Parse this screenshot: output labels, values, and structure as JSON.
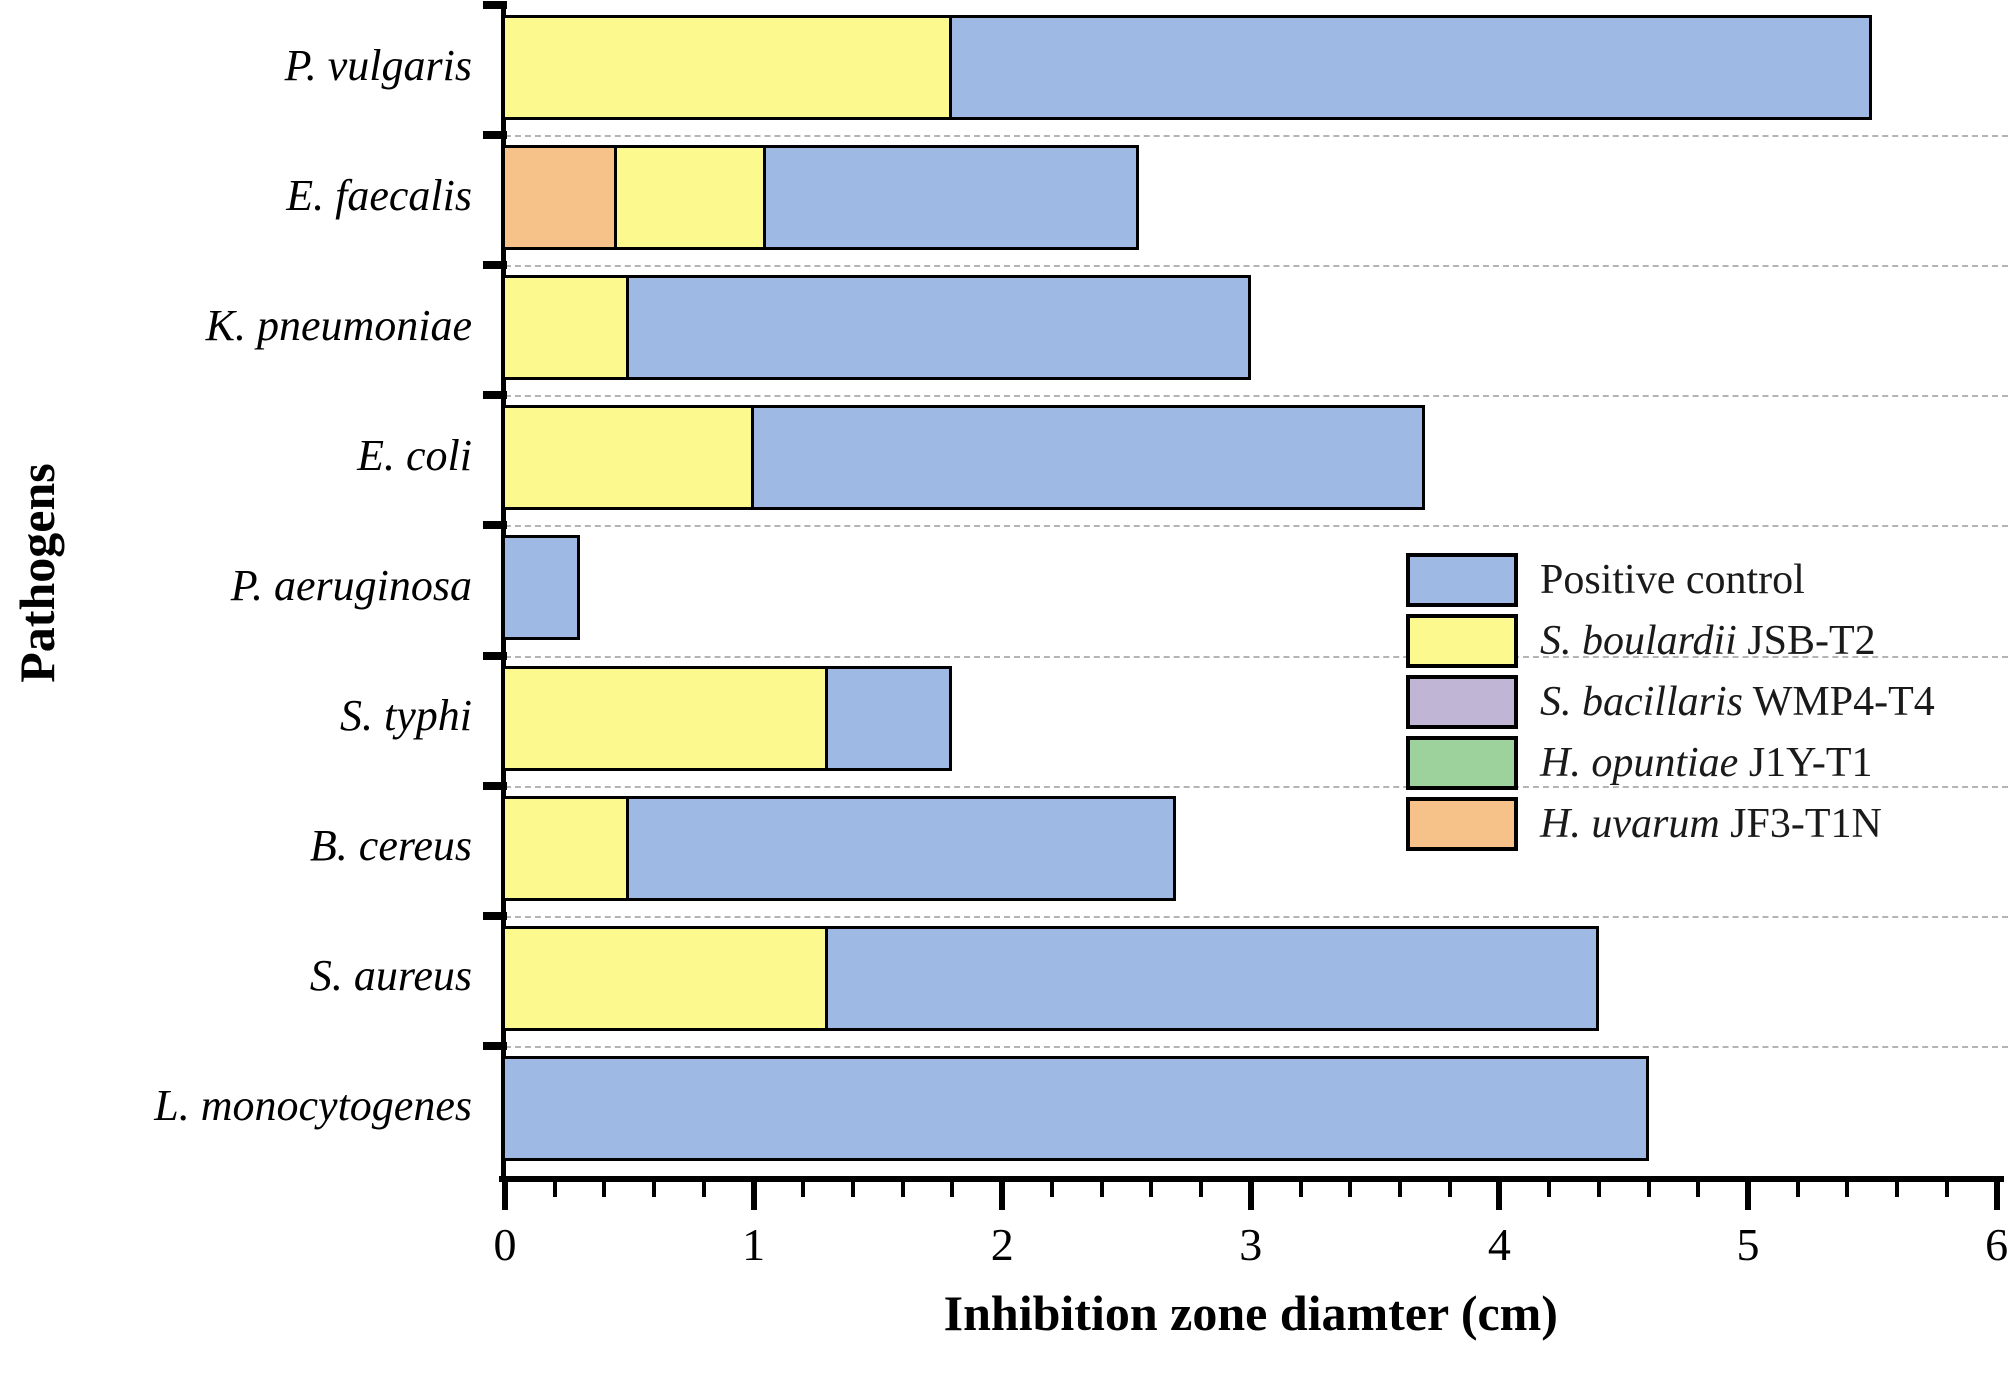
{
  "chart_data": {
    "type": "bar",
    "orientation": "horizontal",
    "title": "",
    "xlabel": "Inhibition zone diamter (cm)",
    "ylabel": "Pathogens",
    "xlim": [
      0,
      6
    ],
    "x_major_ticks": [
      "0",
      "1",
      "2",
      "3",
      "4",
      "5",
      "6"
    ],
    "x_minor_step": 0.2,
    "grid": "dashed horizontal separators between categories",
    "legend_position": "middle-right inside plot",
    "categories": [
      "P. vulgaris",
      "E. faecalis",
      "K. pneumoniae",
      "E. coli",
      "P. aeruginosa",
      "S. typhi",
      "B. cereus",
      "S. aureus",
      "L. monocytogenes"
    ],
    "series": [
      {
        "name": "Positive control",
        "name_italic": "",
        "name_rest": "Positive control",
        "color": "#9fb9e5",
        "values": [
          5.5,
          2.55,
          3.0,
          3.7,
          0.3,
          1.8,
          2.7,
          4.4,
          4.6
        ]
      },
      {
        "name": "S. boulardii JSB-T2",
        "name_italic": "S. boulardii",
        "name_rest": " JSB-T2",
        "color": "#fcf98f",
        "values": [
          1.8,
          1.05,
          0.5,
          1.0,
          0,
          1.3,
          0.5,
          1.3,
          0
        ]
      },
      {
        "name": "S. bacillaris WMP4-T4",
        "name_italic": "S. bacillaris",
        "name_rest": " WMP4-T4",
        "color": "#c1b5d6",
        "values": [
          0,
          0,
          0,
          0,
          0,
          0,
          0,
          0,
          0
        ]
      },
      {
        "name": "H. opuntiae J1Y-T1",
        "name_italic": "H. opuntiae",
        "name_rest": " J1Y-T1",
        "color": "#9ed29c",
        "values": [
          0,
          0,
          0,
          0,
          0,
          0,
          0,
          0,
          0
        ]
      },
      {
        "name": "H. uvarum JF3-T1N",
        "name_italic": "H. uvarum",
        "name_rest": " JF3-T1N",
        "color": "#f6c289",
        "values": [
          0,
          0.45,
          0,
          0,
          0,
          0,
          0,
          0,
          0
        ]
      }
    ],
    "colors": {
      "bar_border": "#000000",
      "axis": "#000000",
      "gridline": "#b4b4b4",
      "background": "#ffffff"
    }
  }
}
